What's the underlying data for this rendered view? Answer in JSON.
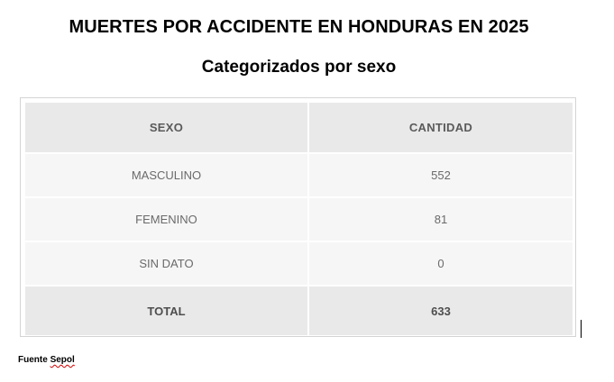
{
  "title": "MUERTES POR ACCIDENTE EN HONDURAS EN 2025",
  "subtitle": "Categorizados por sexo",
  "table": {
    "headers": [
      "SEXO",
      "CANTIDAD"
    ],
    "rows": [
      {
        "sexo": "MASCULINO",
        "cantidad": "552"
      },
      {
        "sexo": "FEMENINO",
        "cantidad": "81"
      },
      {
        "sexo": "SIN DATO",
        "cantidad": "0"
      }
    ],
    "total": {
      "label": "TOTAL",
      "value": "633"
    }
  },
  "source": {
    "prefix": "Fuente",
    "name": "Sepol"
  },
  "colors": {
    "header_bg": "#e9e9e9",
    "row_bg": "#f6f6f6",
    "text": "#6a6a6a",
    "spellcheck_underline": "#cc0000"
  }
}
